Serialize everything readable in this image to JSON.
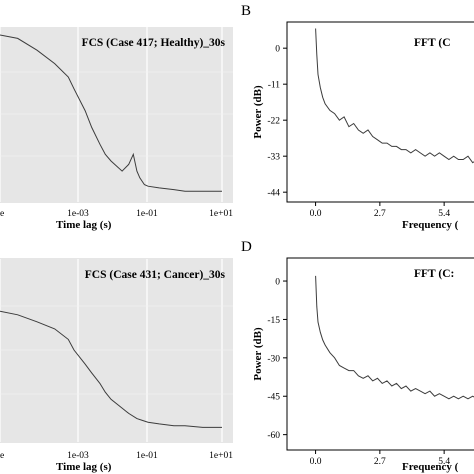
{
  "chart_data": [
    {
      "type": "line",
      "title": "FCS (Case 417; Healthy)_30s",
      "xlabel": "Time lag (s)",
      "ylabel": "",
      "xscale": "log",
      "xlim": [
        1e-05,
        10
      ],
      "xticks": [
        "e",
        "1e-03",
        "1e-01",
        "1e+01"
      ],
      "grid": true,
      "background": "#e6e6e6",
      "series": [
        {
          "x": [
            1e-05,
            3e-05,
            0.0001,
            0.0003,
            0.0007,
            0.001,
            0.002,
            0.003,
            0.005,
            0.007,
            0.01,
            0.02,
            0.03,
            0.04,
            0.05,
            0.06,
            0.08,
            0.1,
            0.2,
            0.5,
            1,
            3,
            10
          ],
          "y": [
            0.97,
            0.95,
            0.88,
            0.8,
            0.72,
            0.65,
            0.52,
            0.42,
            0.32,
            0.26,
            0.22,
            0.16,
            0.2,
            0.26,
            0.16,
            0.12,
            0.08,
            0.07,
            0.06,
            0.05,
            0.04,
            0.04,
            0.04
          ]
        }
      ]
    },
    {
      "type": "line",
      "panel_label": "B",
      "title": "FFT (C",
      "xlabel": "Frequency (",
      "ylabel": "Power (dB)",
      "xlim": [
        -1.2,
        7.2
      ],
      "ylim": [
        -47,
        8
      ],
      "xticks": [
        0.0,
        2.7,
        5.4
      ],
      "xtick_labels": [
        "0.0",
        "2.7",
        "5.4"
      ],
      "yticks": [
        0,
        -11,
        -22,
        -33,
        -44
      ],
      "series": [
        {
          "x": [
            0.0,
            0.05,
            0.1,
            0.2,
            0.3,
            0.4,
            0.6,
            0.8,
            1.0,
            1.2,
            1.4,
            1.6,
            1.8,
            2.0,
            2.2,
            2.4,
            2.6,
            2.8,
            3.0,
            3.2,
            3.4,
            3.6,
            3.8,
            4.0,
            4.2,
            4.4,
            4.6,
            4.8,
            5.0,
            5.2,
            5.4,
            5.6,
            5.8,
            6.0,
            6.2,
            6.4,
            6.6,
            6.8
          ],
          "y": [
            6,
            -2,
            -8,
            -12,
            -15,
            -17,
            -19,
            -20,
            -22,
            -21,
            -24,
            -23,
            -25,
            -26,
            -25,
            -27,
            -28,
            -29,
            -29,
            -30,
            -30,
            -31,
            -31,
            -32,
            -31,
            -32,
            -33,
            -32,
            -33,
            -32,
            -33,
            -34,
            -33,
            -34,
            -34,
            -33,
            -35,
            -34
          ]
        }
      ]
    },
    {
      "type": "line",
      "title": "FCS (Case 431; Cancer)_30s",
      "xlabel": "Time lag (s)",
      "ylabel": "",
      "xscale": "log",
      "xlim": [
        1e-05,
        10
      ],
      "xticks": [
        "e",
        "1e-03",
        "1e-01",
        "1e+01"
      ],
      "grid": true,
      "background": "#e6e6e6",
      "series": [
        {
          "x": [
            1e-05,
            3e-05,
            0.0001,
            0.0003,
            0.0007,
            0.001,
            0.002,
            0.003,
            0.005,
            0.007,
            0.01,
            0.02,
            0.03,
            0.05,
            0.07,
            0.1,
            0.2,
            0.5,
            1,
            3,
            10
          ],
          "y": [
            0.72,
            0.7,
            0.66,
            0.62,
            0.56,
            0.5,
            0.42,
            0.37,
            0.31,
            0.26,
            0.22,
            0.17,
            0.14,
            0.11,
            0.1,
            0.09,
            0.08,
            0.07,
            0.07,
            0.06,
            0.06
          ]
        }
      ]
    },
    {
      "type": "line",
      "panel_label": "D",
      "title": "FFT (C:",
      "xlabel": "Frequency (",
      "ylabel": "Power (dB)",
      "xlim": [
        -1.2,
        7.2
      ],
      "ylim": [
        -66,
        9
      ],
      "xticks": [
        0.0,
        2.7,
        5.4
      ],
      "xtick_labels": [
        "0.0",
        "2.7",
        "5.4"
      ],
      "yticks": [
        0,
        -15,
        -30,
        -45,
        -60
      ],
      "series": [
        {
          "x": [
            0.0,
            0.05,
            0.1,
            0.2,
            0.3,
            0.4,
            0.6,
            0.8,
            1.0,
            1.2,
            1.4,
            1.6,
            1.8,
            2.0,
            2.2,
            2.4,
            2.6,
            2.8,
            3.0,
            3.2,
            3.4,
            3.6,
            3.8,
            4.0,
            4.2,
            4.4,
            4.6,
            4.8,
            5.0,
            5.2,
            5.4,
            5.6,
            5.8,
            6.0,
            6.2,
            6.4,
            6.6,
            6.8
          ],
          "y": [
            2,
            -10,
            -16,
            -20,
            -23,
            -25,
            -28,
            -30,
            -33,
            -34,
            -35,
            -35,
            -37,
            -38,
            -37,
            -39,
            -38,
            -40,
            -39,
            -41,
            -40,
            -42,
            -41,
            -43,
            -42,
            -43,
            -44,
            -43,
            -45,
            -44,
            -45,
            -46,
            -45,
            -46,
            -45,
            -46,
            -45,
            -46
          ]
        }
      ]
    }
  ]
}
